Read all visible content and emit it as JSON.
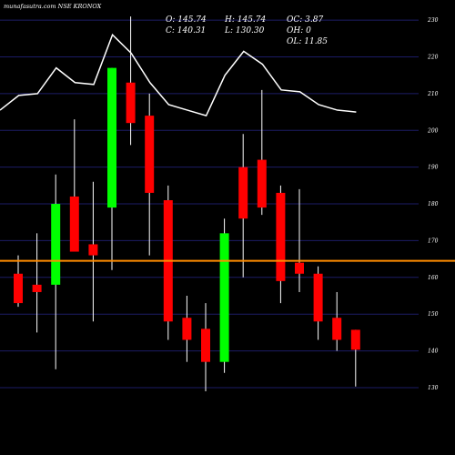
{
  "chart_data": {
    "type": "candlestick",
    "title": "munafasutra.com NSE KRONOX",
    "info": {
      "o": "O: 145.74",
      "h": "H: 145.74",
      "oc": "OC: 3.87",
      "c": "C: 140.31",
      "l": "L: 130.30",
      "oh": "OH: 0",
      "ol": "OL: 11.85"
    },
    "y_ticks": [
      130,
      140,
      150,
      160,
      170,
      180,
      190,
      200,
      210,
      220,
      230
    ],
    "ylim": [
      129,
      233
    ],
    "grid": true,
    "colors": {
      "background": "#000000",
      "up": "#00ff00",
      "down": "#ff0000",
      "grid": "#1c1c66",
      "ma_line": "#ffffff",
      "level_line": "#ff8c00"
    },
    "level": 164.5,
    "candles": [
      {
        "o": 161,
        "h": 166,
        "l": 152,
        "c": 153
      },
      {
        "o": 158,
        "h": 172,
        "l": 145,
        "c": 156
      },
      {
        "o": 158,
        "h": 188,
        "l": 135,
        "c": 180
      },
      {
        "o": 182,
        "h": 203,
        "l": 168,
        "c": 167
      },
      {
        "o": 169,
        "h": 186,
        "l": 148,
        "c": 166
      },
      {
        "o": 179,
        "h": 217,
        "l": 162,
        "c": 217
      },
      {
        "o": 213,
        "h": 231,
        "l": 196,
        "c": 202
      },
      {
        "o": 204,
        "h": 210,
        "l": 166,
        "c": 183
      },
      {
        "o": 181,
        "h": 185,
        "l": 143,
        "c": 148
      },
      {
        "o": 149,
        "h": 155,
        "l": 137,
        "c": 143
      },
      {
        "o": 146,
        "h": 153,
        "l": 129,
        "c": 137
      },
      {
        "o": 137,
        "h": 176,
        "l": 134,
        "c": 172
      },
      {
        "o": 190,
        "h": 199,
        "l": 160,
        "c": 176
      },
      {
        "o": 192,
        "h": 211,
        "l": 177,
        "c": 179
      },
      {
        "o": 183,
        "h": 185,
        "l": 153,
        "c": 159
      },
      {
        "o": 164,
        "h": 184,
        "l": 156,
        "c": 161
      },
      {
        "o": 161,
        "h": 163,
        "l": 143,
        "c": 148
      },
      {
        "o": 149,
        "h": 156,
        "l": 140,
        "c": 143
      },
      {
        "o": 145.74,
        "h": 145.74,
        "l": 130.3,
        "c": 140.31
      }
    ],
    "ma": [
      205.5,
      209.5,
      210,
      217,
      213,
      212.5,
      226,
      221,
      213,
      207,
      205.5,
      204,
      215,
      221.5,
      218,
      211,
      210.5,
      207,
      205.5,
      205
    ]
  }
}
